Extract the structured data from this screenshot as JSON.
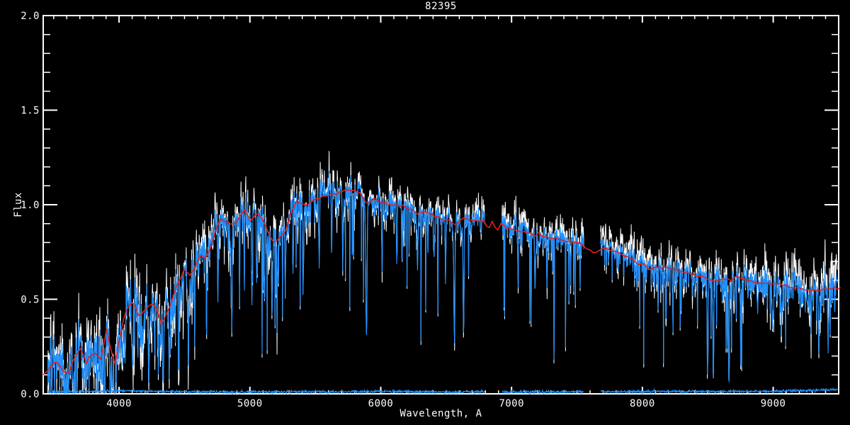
{
  "chart_data": {
    "type": "line",
    "title": "82395",
    "xlabel": "Wavelength, A",
    "ylabel": "Flux",
    "xlim": [
      3420,
      9500
    ],
    "ylim": [
      0.0,
      2.0
    ],
    "x_major_ticks": [
      4000,
      5000,
      6000,
      7000,
      8000,
      9000
    ],
    "x_tick_labels": [
      "4000",
      "5000",
      "6000",
      "7000",
      "8000",
      "9000"
    ],
    "x_minor_step": 100,
    "y_major_ticks": [
      0.0,
      0.5,
      1.0,
      1.5,
      2.0
    ],
    "y_tick_labels": [
      "0.0",
      "0.5",
      "1.0",
      "1.5",
      "2.0"
    ],
    "y_minor_step": 0.1,
    "grid": false,
    "legend": "none",
    "background_color": "#000000",
    "axis_color": "#ffffff",
    "series": [
      {
        "name": "observed-raw-spectrum",
        "kind": "noisy",
        "color": "#ffffff",
        "stroke_width": 1,
        "domain": [
          3455,
          9490
        ],
        "gaps": [
          [
            6795,
            6925
          ],
          [
            7555,
            7680
          ]
        ],
        "sigma_scale": 1.75,
        "offset_points": [
          [
            3455,
            0.004
          ],
          [
            5000,
            0.006
          ],
          [
            5800,
            0.01
          ],
          [
            6300,
            0.016
          ],
          [
            6700,
            0.02
          ],
          [
            7000,
            0.02
          ],
          [
            7400,
            0.022
          ],
          [
            7700,
            0.035
          ],
          [
            7950,
            0.04
          ],
          [
            8150,
            0.026
          ],
          [
            8500,
            0.02
          ],
          [
            8900,
            0.024
          ],
          [
            9150,
            0.04
          ],
          [
            9350,
            0.05
          ],
          [
            9490,
            0.05
          ]
        ]
      },
      {
        "name": "observed-spectrum",
        "kind": "noisy",
        "color": "#1e90ff",
        "stroke_width": 1.1,
        "domain": [
          3455,
          9490
        ],
        "gaps": [
          [
            6795,
            6925
          ],
          [
            7555,
            7680
          ]
        ],
        "sigma_scale": 1.0,
        "offset_points": [
          [
            3455,
            0
          ],
          [
            9490,
            0
          ]
        ]
      },
      {
        "name": "error-spectrum",
        "kind": "error",
        "color": "#1e90ff",
        "stroke_width": 1.2,
        "domain": [
          3460,
          9490
        ],
        "gaps": [
          [
            6795,
            6925
          ],
          [
            7555,
            7680
          ]
        ],
        "jitter": 0.0035,
        "level_points": [
          [
            3460,
            0.008
          ],
          [
            3700,
            0.012
          ],
          [
            3950,
            0.016
          ],
          [
            4050,
            0.018
          ],
          [
            4200,
            0.014
          ],
          [
            4500,
            0.01
          ],
          [
            5000,
            0.01
          ],
          [
            5500,
            0.011
          ],
          [
            6000,
            0.012
          ],
          [
            6500,
            0.01
          ],
          [
            7000,
            0.01
          ],
          [
            7500,
            0.011
          ],
          [
            8000,
            0.012
          ],
          [
            8500,
            0.012
          ],
          [
            9000,
            0.014
          ],
          [
            9200,
            0.018
          ],
          [
            9490,
            0.022
          ]
        ]
      },
      {
        "name": "template-fit",
        "kind": "model",
        "color": "#e02020",
        "stroke_width": 1.6,
        "domain": [
          3420,
          9520
        ],
        "jitter": 0.004
      }
    ],
    "model_points": [
      [
        3420,
        0.1
      ],
      [
        3455,
        0.13
      ],
      [
        3490,
        0.16
      ],
      [
        3525,
        0.17
      ],
      [
        3560,
        0.13
      ],
      [
        3610,
        0.1
      ],
      [
        3660,
        0.19
      ],
      [
        3712,
        0.24
      ],
      [
        3745,
        0.155
      ],
      [
        3785,
        0.21
      ],
      [
        3820,
        0.21
      ],
      [
        3860,
        0.18
      ],
      [
        3885,
        0.26
      ],
      [
        3905,
        0.35
      ],
      [
        3933,
        0.24
      ],
      [
        3968,
        0.15
      ],
      [
        4000,
        0.28
      ],
      [
        4045,
        0.43
      ],
      [
        4100,
        0.49
      ],
      [
        4130,
        0.44
      ],
      [
        4160,
        0.4
      ],
      [
        4190,
        0.44
      ],
      [
        4220,
        0.46
      ],
      [
        4265,
        0.48
      ],
      [
        4295,
        0.43
      ],
      [
        4325,
        0.37
      ],
      [
        4355,
        0.41
      ],
      [
        4380,
        0.45
      ],
      [
        4430,
        0.55
      ],
      [
        4470,
        0.61
      ],
      [
        4500,
        0.66
      ],
      [
        4540,
        0.62
      ],
      [
        4580,
        0.68
      ],
      [
        4620,
        0.735
      ],
      [
        4660,
        0.71
      ],
      [
        4700,
        0.78
      ],
      [
        4735,
        0.86
      ],
      [
        4770,
        0.92
      ],
      [
        4800,
        0.915
      ],
      [
        4830,
        0.91
      ],
      [
        4870,
        0.89
      ],
      [
        4920,
        0.93
      ],
      [
        4960,
        0.975
      ],
      [
        5000,
        0.91
      ],
      [
        5060,
        0.96
      ],
      [
        5100,
        0.92
      ],
      [
        5130,
        0.865
      ],
      [
        5180,
        0.8
      ],
      [
        5220,
        0.82
      ],
      [
        5270,
        0.86
      ],
      [
        5320,
        0.97
      ],
      [
        5360,
        1.02
      ],
      [
        5430,
        1.0
      ],
      [
        5470,
        1.02
      ],
      [
        5550,
        1.04
      ],
      [
        5650,
        1.06
      ],
      [
        5760,
        1.08
      ],
      [
        5830,
        1.075
      ],
      [
        5895,
        1.0
      ],
      [
        5950,
        1.03
      ],
      [
        6020,
        1.01
      ],
      [
        6100,
        1.0
      ],
      [
        6180,
        0.99
      ],
      [
        6250,
        0.965
      ],
      [
        6281,
        0.945
      ],
      [
        6320,
        0.96
      ],
      [
        6400,
        0.95
      ],
      [
        6470,
        0.92
      ],
      [
        6530,
        0.92
      ],
      [
        6563,
        0.89
      ],
      [
        6620,
        0.93
      ],
      [
        6680,
        0.92
      ],
      [
        6740,
        0.91
      ],
      [
        6790,
        0.92
      ],
      [
        6820,
        0.87
      ],
      [
        6855,
        0.91
      ],
      [
        6890,
        0.86
      ],
      [
        6920,
        0.9
      ],
      [
        6960,
        0.88
      ],
      [
        7020,
        0.87
      ],
      [
        7080,
        0.86
      ],
      [
        7140,
        0.85
      ],
      [
        7200,
        0.84
      ],
      [
        7270,
        0.83
      ],
      [
        7340,
        0.82
      ],
      [
        7410,
        0.81
      ],
      [
        7480,
        0.8
      ],
      [
        7540,
        0.79
      ],
      [
        7600,
        0.76
      ],
      [
        7650,
        0.745
      ],
      [
        7700,
        0.77
      ],
      [
        7760,
        0.765
      ],
      [
        7820,
        0.745
      ],
      [
        7880,
        0.72
      ],
      [
        7940,
        0.7
      ],
      [
        8000,
        0.68
      ],
      [
        8070,
        0.66
      ],
      [
        8140,
        0.67
      ],
      [
        8210,
        0.66
      ],
      [
        8280,
        0.65
      ],
      [
        8350,
        0.64
      ],
      [
        8420,
        0.63
      ],
      [
        8470,
        0.62
      ],
      [
        8510,
        0.605
      ],
      [
        8550,
        0.6
      ],
      [
        8620,
        0.61
      ],
      [
        8662,
        0.6
      ],
      [
        8730,
        0.62
      ],
      [
        8800,
        0.6
      ],
      [
        8870,
        0.59
      ],
      [
        8940,
        0.58
      ],
      [
        9010,
        0.58
      ],
      [
        9100,
        0.57
      ],
      [
        9200,
        0.56
      ],
      [
        9300,
        0.55
      ],
      [
        9400,
        0.555
      ],
      [
        9490,
        0.56
      ]
    ],
    "absorption_lines": [
      [
        3587,
        0.04,
        9
      ],
      [
        3727,
        0.05,
        8
      ],
      [
        3770,
        0.1,
        7
      ],
      [
        3835,
        0.07,
        8
      ],
      [
        3889,
        0.1,
        8
      ],
      [
        3933,
        0.05,
        10
      ],
      [
        3969,
        0.06,
        10
      ],
      [
        4026,
        0.18,
        7
      ],
      [
        4045,
        0.12,
        8
      ],
      [
        4102,
        0.1,
        9
      ],
      [
        4144,
        0.18,
        7
      ],
      [
        4226,
        0.1,
        9
      ],
      [
        4271,
        0.22,
        7
      ],
      [
        4300,
        0.15,
        9
      ],
      [
        4340,
        0.12,
        9
      ],
      [
        4383,
        0.15,
        8
      ],
      [
        4455,
        0.22,
        7
      ],
      [
        4531,
        0.24,
        7
      ],
      [
        4578,
        0.35,
        6
      ],
      [
        4668,
        0.32,
        7
      ],
      [
        4755,
        0.45,
        6
      ],
      [
        4861,
        0.35,
        9
      ],
      [
        4921,
        0.48,
        6
      ],
      [
        4957,
        0.52,
        6
      ],
      [
        5015,
        0.45,
        6
      ],
      [
        5051,
        0.55,
        6
      ],
      [
        5110,
        0.48,
        6
      ],
      [
        5170,
        0.42,
        9
      ],
      [
        5207,
        0.48,
        6
      ],
      [
        5270,
        0.52,
        7
      ],
      [
        5330,
        0.58,
        6
      ],
      [
        5406,
        0.5,
        6
      ],
      [
        5530,
        0.62,
        6
      ],
      [
        5625,
        0.7,
        6
      ],
      [
        5710,
        0.68,
        6
      ],
      [
        5783,
        0.72,
        6
      ],
      [
        5890,
        0.29,
        11
      ],
      [
        6010,
        0.72,
        6
      ],
      [
        6122,
        0.66,
        6
      ],
      [
        6162,
        0.7,
        6
      ],
      [
        6280,
        0.63,
        8
      ],
      [
        6360,
        0.7,
        6
      ],
      [
        6408,
        0.68,
        6
      ],
      [
        6495,
        0.56,
        6
      ],
      [
        6563,
        0.3,
        9
      ],
      [
        6633,
        0.37,
        8
      ],
      [
        7050,
        0.62,
        6
      ],
      [
        7180,
        0.55,
        8
      ],
      [
        7270,
        0.62,
        6
      ],
      [
        7450,
        0.65,
        6
      ],
      [
        8180,
        0.46,
        6
      ],
      [
        8230,
        0.52,
        6
      ],
      [
        8498,
        0.11,
        8
      ],
      [
        8542,
        0.04,
        8
      ],
      [
        8662,
        0.05,
        8
      ],
      [
        8750,
        0.46,
        6
      ],
      [
        8806,
        0.5,
        6
      ],
      [
        8880,
        0.36,
        8
      ],
      [
        8940,
        0.52,
        6
      ],
      [
        9000,
        0.44,
        6
      ],
      [
        9061,
        0.38,
        8
      ],
      [
        9150,
        0.46,
        6
      ],
      [
        9245,
        0.42,
        6
      ],
      [
        9350,
        0.3,
        8
      ],
      [
        9420,
        0.22,
        8
      ],
      [
        9470,
        0.4,
        6
      ]
    ],
    "noise_sigma_points": [
      [
        3455,
        0.085
      ],
      [
        3600,
        0.088
      ],
      [
        3750,
        0.082
      ],
      [
        3900,
        0.075
      ],
      [
        4100,
        0.068
      ],
      [
        4300,
        0.062
      ],
      [
        4500,
        0.055
      ],
      [
        4700,
        0.05
      ],
      [
        4900,
        0.047
      ],
      [
        5100,
        0.045
      ],
      [
        5300,
        0.042
      ],
      [
        5500,
        0.04
      ],
      [
        5700,
        0.038
      ],
      [
        5900,
        0.036
      ],
      [
        6100,
        0.034
      ],
      [
        6300,
        0.033
      ],
      [
        6500,
        0.031
      ],
      [
        6700,
        0.031
      ],
      [
        6950,
        0.033
      ],
      [
        7200,
        0.032
      ],
      [
        7450,
        0.032
      ],
      [
        7700,
        0.034
      ],
      [
        7950,
        0.036
      ],
      [
        8200,
        0.035
      ],
      [
        8450,
        0.035
      ],
      [
        8700,
        0.036
      ],
      [
        8950,
        0.04
      ],
      [
        9200,
        0.045
      ],
      [
        9490,
        0.052
      ]
    ],
    "noise": {
      "sample_step_angstrom": 2.6,
      "seed": 42,
      "spike_prob": 0.035,
      "spike_depth": [
        0.4,
        0.85
      ],
      "deep_spike_prob": 0.008,
      "deep_spike_depth": [
        0.2,
        0.5
      ],
      "negative_boost": 1.55
    }
  }
}
